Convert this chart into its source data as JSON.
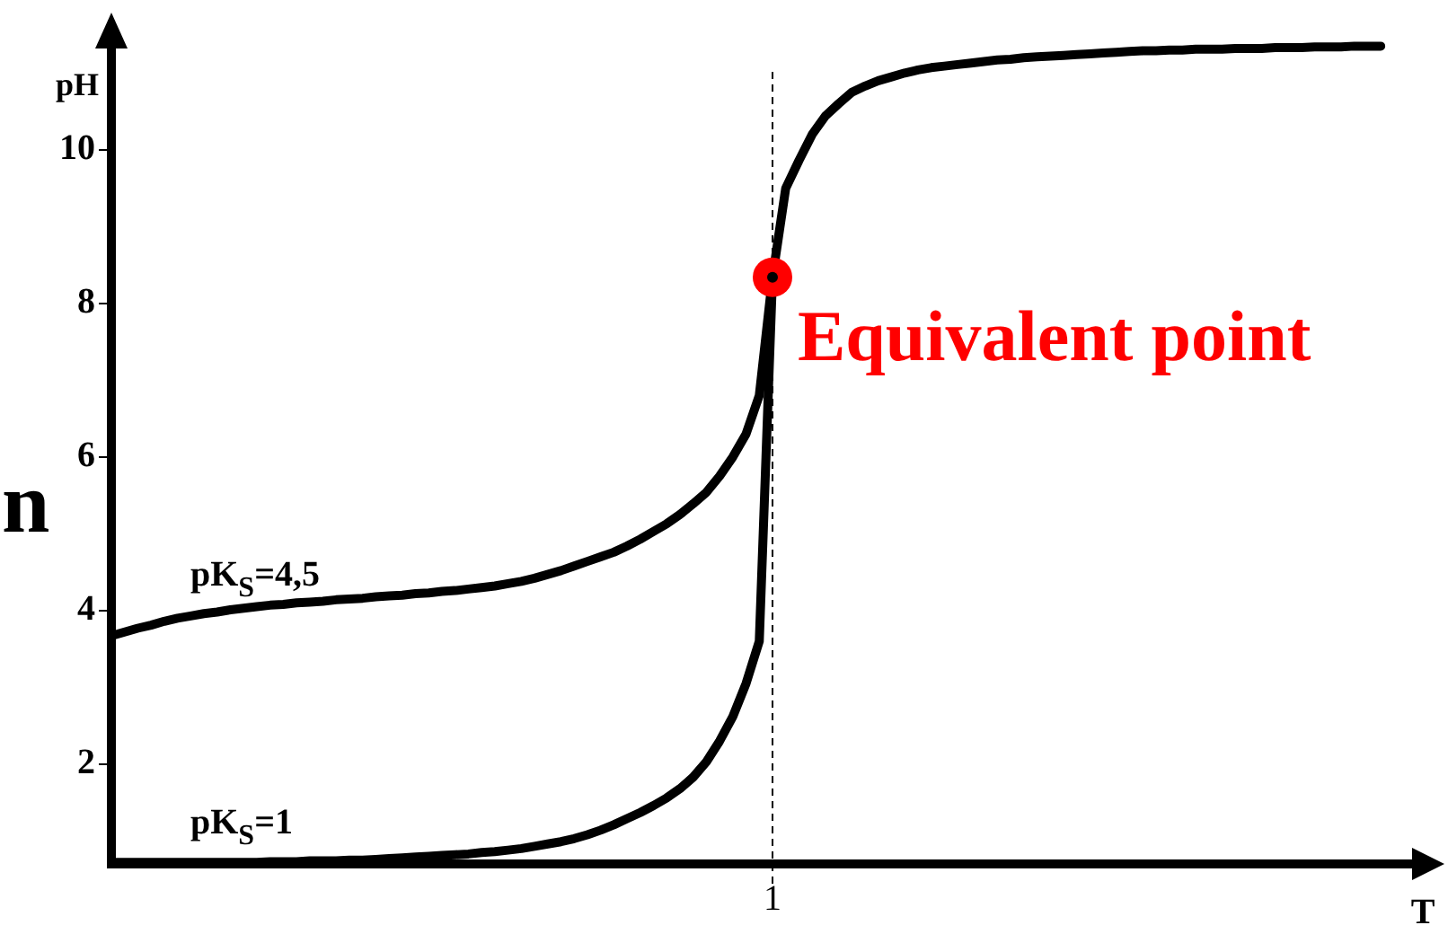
{
  "chart_data": {
    "type": "line",
    "xlabel": "T",
    "ylabel": "pH",
    "ylim": [
      0.7,
      11.6
    ],
    "yticks": [
      2,
      4,
      6,
      8,
      10
    ],
    "marker": "none",
    "categories": [
      null,
      null,
      null,
      null,
      null,
      null,
      null,
      null,
      null,
      null,
      null,
      null,
      null,
      null,
      null,
      null,
      null,
      null,
      null,
      null,
      null,
      null,
      null,
      null,
      null,
      null,
      null,
      null,
      null,
      null,
      null,
      null,
      null,
      null,
      null,
      null,
      null,
      null,
      null,
      null,
      null,
      null,
      null,
      null,
      null,
      null,
      null,
      null,
      null,
      null,
      "1",
      null,
      null,
      null,
      null,
      null,
      null,
      null,
      null,
      null,
      null,
      null,
      null,
      null,
      null,
      null,
      null,
      null,
      null,
      null,
      null,
      null,
      null,
      null,
      null,
      null,
      null,
      null,
      null,
      null,
      null,
      null,
      null,
      null,
      null,
      null,
      null,
      null,
      null,
      null,
      null,
      null,
      null,
      null,
      null,
      null,
      null,
      null,
      null,
      null,
      null
    ],
    "series": [
      {
        "name": "pK$_{S}$=4,5",
        "color": "#000000",
        "values": [
          3.67,
          3.72,
          3.77,
          3.81,
          3.86,
          3.9,
          3.93,
          3.96,
          3.98,
          4.01,
          4.03,
          4.05,
          4.07,
          4.08,
          4.1,
          4.11,
          4.12,
          4.14,
          4.15,
          4.16,
          4.18,
          4.19,
          4.2,
          4.22,
          4.23,
          4.25,
          4.26,
          4.28,
          4.3,
          4.32,
          4.35,
          4.38,
          4.42,
          4.47,
          4.52,
          4.58,
          4.64,
          4.7,
          4.76,
          4.84,
          4.93,
          5.03,
          5.13,
          5.25,
          5.39,
          5.54,
          5.75,
          6.0,
          6.3,
          6.8,
          8.34,
          9.5,
          9.86,
          10.2,
          10.44,
          10.6,
          10.75,
          10.83,
          10.9,
          10.95,
          11.0,
          11.04,
          11.07,
          11.09,
          11.11,
          11.13,
          11.15,
          11.17,
          11.18,
          11.2,
          11.21,
          11.22,
          11.23,
          11.24,
          11.25,
          11.26,
          11.27,
          11.28,
          11.29,
          11.29,
          11.3,
          11.3,
          11.31,
          11.31,
          11.31,
          11.32,
          11.32,
          11.32,
          11.33,
          11.33,
          11.33,
          11.34,
          11.34,
          11.34,
          11.35,
          11.35,
          11.35,
          null,
          null,
          null,
          null
        ]
      },
      {
        "name": "pK$_{S}$=1",
        "color": "#000000",
        "values": [
          0.72,
          0.72,
          0.72,
          0.72,
          0.72,
          0.72,
          0.72,
          0.72,
          0.72,
          0.72,
          0.72,
          0.72,
          0.73,
          0.73,
          0.73,
          0.74,
          0.74,
          0.74,
          0.75,
          0.75,
          0.76,
          0.77,
          0.78,
          0.79,
          0.8,
          0.81,
          0.82,
          0.83,
          0.85,
          0.86,
          0.88,
          0.9,
          0.93,
          0.96,
          0.99,
          1.03,
          1.08,
          1.14,
          1.21,
          1.29,
          1.37,
          1.46,
          1.56,
          1.68,
          1.83,
          2.03,
          2.3,
          2.62,
          3.05,
          3.6,
          8.34,
          null,
          null,
          null,
          null,
          null,
          null,
          null,
          null,
          null,
          null,
          null,
          null,
          null,
          null,
          null,
          null,
          null,
          null,
          null,
          null,
          null,
          null,
          null,
          null,
          null,
          null,
          null,
          null,
          null,
          null,
          null,
          null,
          null,
          null,
          null,
          null,
          null,
          null,
          null,
          null,
          null,
          null,
          null,
          null,
          null,
          null,
          null,
          null,
          null,
          null
        ]
      }
    ],
    "ref_lines": [
      {
        "axis": "x",
        "value": "1",
        "line_style": "dashed",
        "color": "#000000"
      }
    ],
    "annotations": [
      {
        "text": "Equivalent point",
        "x": "1",
        "y": 8.34
      },
      "n"
    ]
  }
}
